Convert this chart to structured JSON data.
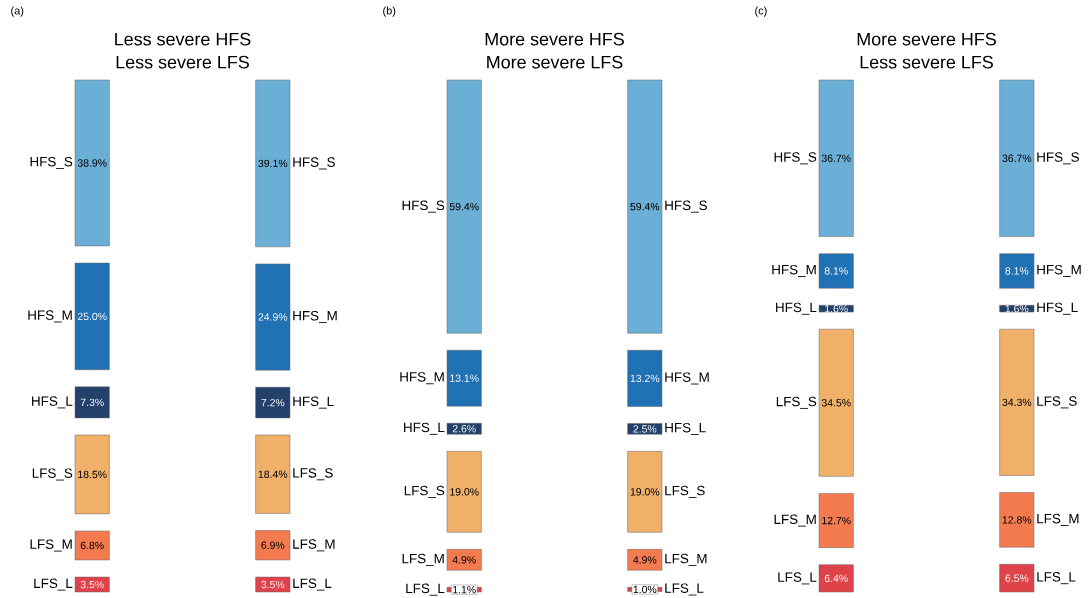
{
  "chart_data": [
    {
      "type": "other",
      "title": "Less severe HFS",
      "subtitle": "Less severe LFS",
      "annotations": [
        "(a)"
      ],
      "categories": [
        "HFS_S",
        "HFS_M",
        "HFS_L",
        "LFS_S",
        "LFS_M",
        "LFS_L"
      ],
      "series": [
        {
          "values": [
            38.9,
            25.0,
            7.3,
            18.5,
            6.8,
            3.5
          ],
          "value_labels": [
            "38.9%",
            "25.0%",
            "7.3%",
            "18.5%",
            "6.8%",
            "3.5%"
          ],
          "colors": [
            "#6baed6",
            "#2171b5",
            "#24416b",
            "#f0b06a",
            "#f47b50",
            "#e0424a"
          ]
        },
        {
          "values": [
            39.1,
            24.9,
            7.2,
            18.4,
            6.9,
            3.5
          ],
          "value_labels": [
            "39.1%",
            "24.9%",
            "7.2%",
            "18.4%",
            "6.9%",
            "3.5%"
          ],
          "colors": [
            "#6baed6",
            "#2171b5",
            "#24416b",
            "#f0b06a",
            "#f47b50",
            "#e0424a"
          ]
        }
      ]
    },
    {
      "type": "other",
      "title": "More severe HFS",
      "subtitle": "More severe LFS",
      "annotations": [
        "(b)"
      ],
      "categories": [
        "HFS_S",
        "HFS_M",
        "HFS_L",
        "LFS_S",
        "LFS_M",
        "LFS_L"
      ],
      "series": [
        {
          "values": [
            59.4,
            13.1,
            2.6,
            19.0,
            4.9,
            1.1
          ],
          "value_labels": [
            "59.4%",
            "13.1%",
            "2.6%",
            "19.0%",
            "4.9%",
            "1.1%"
          ],
          "colors": [
            "#6baed6",
            "#2171b5",
            "#24416b",
            "#f0b06a",
            "#f47b50",
            "#e0424a"
          ]
        },
        {
          "values": [
            59.4,
            13.2,
            2.5,
            19.0,
            4.9,
            1.0
          ],
          "value_labels": [
            "59.4%",
            "13.2%",
            "2.5%",
            "19.0%",
            "4.9%",
            "1.0%"
          ],
          "colors": [
            "#6baed6",
            "#2171b5",
            "#24416b",
            "#f0b06a",
            "#f47b50",
            "#e0424a"
          ]
        }
      ]
    },
    {
      "type": "other",
      "title": "More severe HFS",
      "subtitle": "Less severe LFS",
      "annotations": [
        "(c)"
      ],
      "categories": [
        "HFS_S",
        "HFS_M",
        "HFS_L",
        "LFS_S",
        "LFS_M",
        "LFS_L"
      ],
      "series": [
        {
          "values": [
            36.7,
            8.1,
            1.6,
            34.5,
            12.7,
            6.4
          ],
          "value_labels": [
            "36.7%",
            "8.1%",
            "1.6%",
            "34.5%",
            "12.7%",
            "6.4%"
          ],
          "colors": [
            "#6baed6",
            "#2171b5",
            "#24416b",
            "#f0b06a",
            "#f47b50",
            "#e0424a"
          ]
        },
        {
          "values": [
            36.7,
            8.1,
            1.6,
            34.3,
            12.8,
            6.5
          ],
          "value_labels": [
            "36.7%",
            "8.1%",
            "1.6%",
            "34.3%",
            "12.8%",
            "6.5%"
          ],
          "colors": [
            "#6baed6",
            "#2171b5",
            "#24416b",
            "#f0b06a",
            "#f47b50",
            "#e0424a"
          ]
        }
      ]
    }
  ]
}
